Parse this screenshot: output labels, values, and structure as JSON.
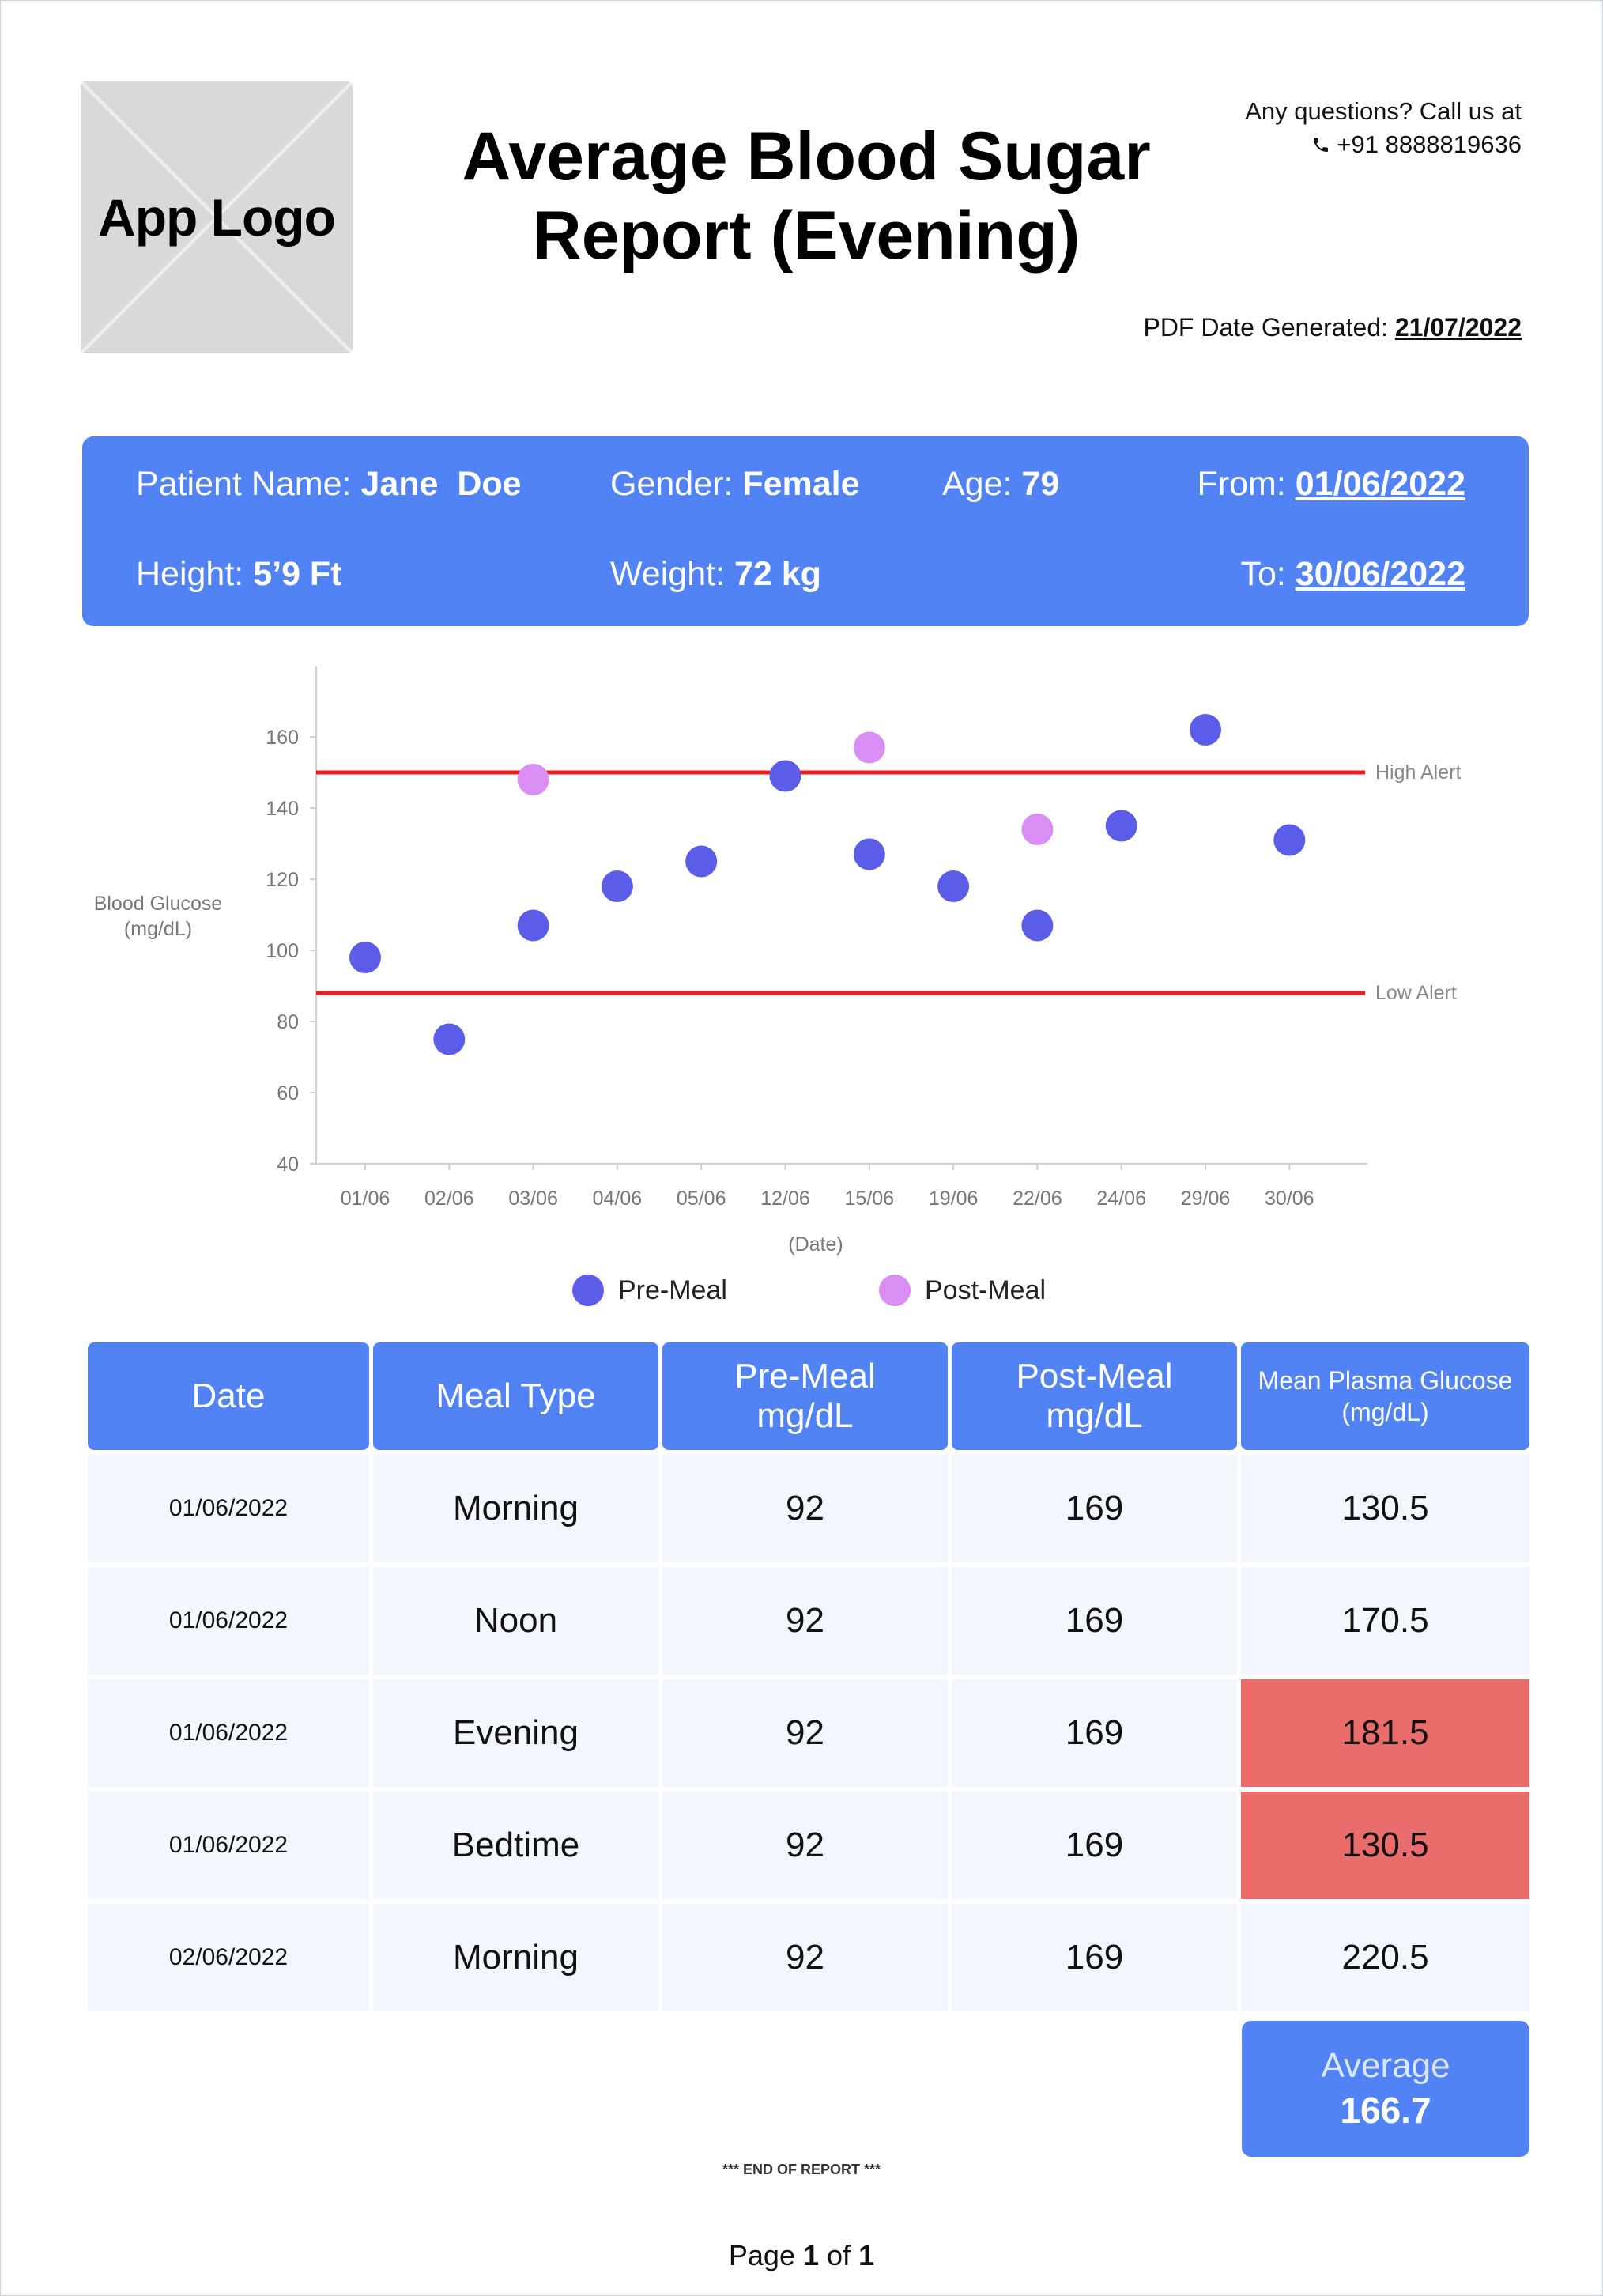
{
  "logo": {
    "text": "App Logo"
  },
  "title": "Average Blood Sugar Report (Evening)",
  "contact": {
    "line1": "Any questions? Call us at",
    "phone": "+91 8888819636",
    "icon": "phone-icon"
  },
  "generated": {
    "label": "PDF Date Generated:",
    "value": "21/07/2022"
  },
  "patient": {
    "name_label": "Patient Name:",
    "name": "Jane  Doe",
    "gender_label": "Gender:",
    "gender": "Female",
    "age_label": "Age:",
    "age": "79",
    "from_label": "From:",
    "from": "01/06/2022",
    "height_label": "Height:",
    "height": "5’9 Ft",
    "weight_label": "Weight:",
    "weight": "72 kg",
    "to_label": "To:",
    "to": "30/06/2022"
  },
  "chart_data": {
    "type": "scatter",
    "xlabel": "(Date)",
    "ylabel": "Blood Glucose (mg/dL)",
    "categories": [
      "01/06",
      "02/06",
      "03/06",
      "04/06",
      "05/06",
      "12/06",
      "15/06",
      "19/06",
      "22/06",
      "24/06",
      "29/06",
      "30/06"
    ],
    "yticks": [
      40,
      60,
      80,
      100,
      120,
      140,
      160
    ],
    "ylim": [
      40,
      165
    ],
    "grid": false,
    "legend_position": "bottom",
    "series": [
      {
        "name": "Pre-Meal",
        "color": "#5b5ce8",
        "points": [
          [
            "01/06",
            98
          ],
          [
            "02/06",
            75
          ],
          [
            "03/06",
            107
          ],
          [
            "04/06",
            118
          ],
          [
            "05/06",
            125
          ],
          [
            "12/06",
            149
          ],
          [
            "15/06",
            127
          ],
          [
            "19/06",
            118
          ],
          [
            "22/06",
            107
          ],
          [
            "24/06",
            135
          ],
          [
            "29/06",
            162
          ],
          [
            "30/06",
            131
          ]
        ]
      },
      {
        "name": "Post-Meal",
        "color": "#da8df5",
        "points": [
          [
            "03/06",
            148
          ],
          [
            "15/06",
            157
          ],
          [
            "22/06",
            134
          ]
        ]
      }
    ],
    "thresholds": [
      {
        "label": "High Alert",
        "value": 150,
        "color": "#ee1c1c"
      },
      {
        "label": "Low Alert",
        "value": 88,
        "color": "#ee1c1c"
      }
    ]
  },
  "legend": {
    "pre": "Pre-Meal",
    "post": "Post-Meal"
  },
  "table": {
    "headers": [
      "Date",
      "Meal Type",
      "Pre-Meal mg/dL",
      "Post-Meal mg/dL",
      "Mean Plasma Glucose (mg/dL)"
    ],
    "rows": [
      {
        "date": "01/06/2022",
        "meal": "Morning",
        "pre": "92",
        "post": "169",
        "mean": "130.5",
        "alert": false
      },
      {
        "date": "01/06/2022",
        "meal": "Noon",
        "pre": "92",
        "post": "169",
        "mean": "170.5",
        "alert": false
      },
      {
        "date": "01/06/2022",
        "meal": "Evening",
        "pre": "92",
        "post": "169",
        "mean": "181.5",
        "alert": true
      },
      {
        "date": "01/06/2022",
        "meal": "Bedtime",
        "pre": "92",
        "post": "169",
        "mean": "130.5",
        "alert": true
      },
      {
        "date": "02/06/2022",
        "meal": "Morning",
        "pre": "92",
        "post": "169",
        "mean": "220.5",
        "alert": false
      }
    ],
    "alert_color": "#ea6c6b"
  },
  "average": {
    "label": "Average",
    "value": "166.7"
  },
  "footer": {
    "end": "*** END OF REPORT ***",
    "page_label": "Page",
    "page": "1",
    "of_label": "of",
    "total": "1"
  },
  "colors": {
    "accent": "#5183f4",
    "row_bg": "#f4f6fd"
  }
}
